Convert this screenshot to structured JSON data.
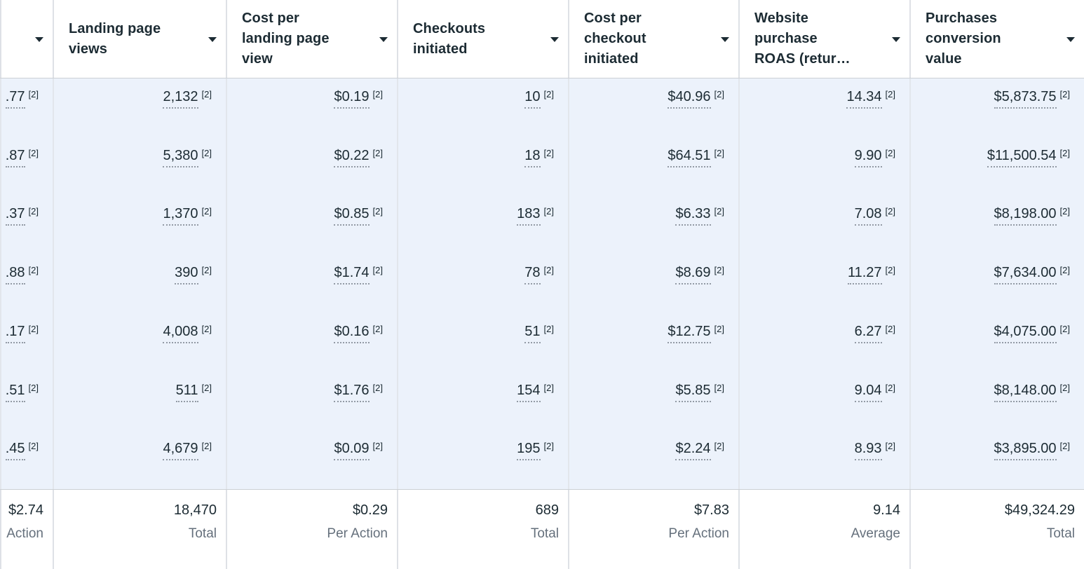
{
  "page": {
    "type": "ads-reporting-metrics-table"
  },
  "colors": {
    "highlight_column_bg": "#ECF2FB",
    "text_primary": "#1C2B33",
    "text_muted": "#65707C",
    "column_divider": "#E2E6EC",
    "header_divider": "#DEE1E6",
    "section_border": "#CCD0D5",
    "underline_dots": "#939BA5"
  },
  "icons": {
    "column_header_caret": "caret-down-icon"
  },
  "table": {
    "footnote_marker": "[2]",
    "columns": [
      {
        "id": "leading-clipped",
        "label": ""
      },
      {
        "id": "landing-page-views",
        "label": "Landing page views"
      },
      {
        "id": "cost-per-landing-page-view",
        "label": "Cost per landing page view"
      },
      {
        "id": "checkouts-initiated",
        "label": "Checkouts initiated"
      },
      {
        "id": "cost-per-checkout-initiated",
        "label": "Cost per checkout initiated"
      },
      {
        "id": "website-purchase-roas",
        "label": "Website purchase ROAS (retur…"
      },
      {
        "id": "purchases-conversion-value",
        "label": "Purchases conversion value"
      }
    ],
    "rows": [
      {
        "cells": [
          ".77",
          "2,132",
          "$0.19",
          "10",
          "$40.96",
          "14.34",
          "$5,873.75"
        ]
      },
      {
        "cells": [
          ".87",
          "5,380",
          "$0.22",
          "18",
          "$64.51",
          "9.90",
          "$11,500.54"
        ]
      },
      {
        "cells": [
          ".37",
          "1,370",
          "$0.85",
          "183",
          "$6.33",
          "7.08",
          "$8,198.00"
        ]
      },
      {
        "cells": [
          ".88",
          "390",
          "$1.74",
          "78",
          "$8.69",
          "11.27",
          "$7,634.00"
        ]
      },
      {
        "cells": [
          ".17",
          "4,008",
          "$0.16",
          "51",
          "$12.75",
          "6.27",
          "$4,075.00"
        ]
      },
      {
        "cells": [
          ".51",
          "511",
          "$1.76",
          "154",
          "$5.85",
          "9.04",
          "$8,148.00"
        ]
      },
      {
        "cells": [
          ".45",
          "4,679",
          "$0.09",
          "195",
          "$2.24",
          "8.93",
          "$3,895.00"
        ]
      }
    ],
    "summary": {
      "values": [
        "$2.74",
        "18,470",
        "$0.29",
        "689",
        "$7.83",
        "9.14",
        "$49,324.29"
      ],
      "labels": [
        "Action",
        "Total",
        "Per Action",
        "Total",
        "Per Action",
        "Average",
        "Total"
      ]
    }
  }
}
